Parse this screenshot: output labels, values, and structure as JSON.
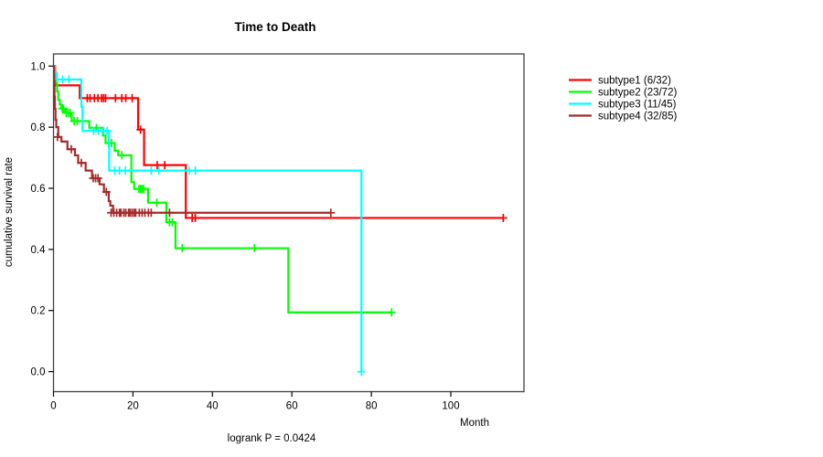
{
  "chart_data": {
    "type": "line",
    "subtype": "kaplan-meier-step",
    "title": "Time to Death",
    "footer": "logrank P = 0.0424",
    "x_axis": {
      "unit": "Month",
      "ticks": [
        0,
        20,
        40,
        60,
        80,
        100
      ],
      "range": [
        0,
        118.4
      ],
      "grid": false
    },
    "y_axis": {
      "label": "cumulative survival rate",
      "ticks": [
        "0.0",
        "0.2",
        "0.4",
        "0.6",
        "0.8",
        "1.0"
      ],
      "tick_values": [
        0.0,
        0.2,
        0.4,
        0.6,
        0.8,
        1.0
      ],
      "range": [
        0,
        1.0
      ],
      "grid": false
    },
    "legend_position": "right-outside",
    "series": [
      {
        "name": "subtype1 (6/32)",
        "color": "#FF0000",
        "steps": [
          [
            0,
            1.0
          ],
          [
            0.4,
            0.937
          ],
          [
            6.6,
            0.895
          ],
          [
            21.3,
            0.792
          ],
          [
            22.8,
            0.676
          ],
          [
            33.3,
            0.503
          ],
          [
            113.2,
            0.503
          ]
        ],
        "censors": [
          [
            8.5,
            0.895
          ],
          [
            9.2,
            0.895
          ],
          [
            10.3,
            0.895
          ],
          [
            11.2,
            0.895
          ],
          [
            12.1,
            0.895
          ],
          [
            12.6,
            0.895
          ],
          [
            13.1,
            0.895
          ],
          [
            15.6,
            0.895
          ],
          [
            17.2,
            0.895
          ],
          [
            18.2,
            0.895
          ],
          [
            19.8,
            0.895
          ],
          [
            21.9,
            0.792
          ],
          [
            26.1,
            0.676
          ],
          [
            28.0,
            0.676
          ],
          [
            34.9,
            0.503
          ],
          [
            35.7,
            0.503
          ],
          [
            113.2,
            0.503
          ]
        ]
      },
      {
        "name": "subtype2 (23/72)",
        "color": "#00FF00",
        "steps": [
          [
            0,
            1.0
          ],
          [
            0.3,
            0.972
          ],
          [
            0.6,
            0.944
          ],
          [
            0.9,
            0.917
          ],
          [
            1.2,
            0.889
          ],
          [
            1.6,
            0.875
          ],
          [
            2.0,
            0.861
          ],
          [
            2.8,
            0.847
          ],
          [
            4.6,
            0.82
          ],
          [
            9.0,
            0.798
          ],
          [
            12.4,
            0.773
          ],
          [
            13.1,
            0.748
          ],
          [
            15.4,
            0.723
          ],
          [
            16.3,
            0.708
          ],
          [
            19.6,
            0.62
          ],
          [
            20.3,
            0.598
          ],
          [
            23.8,
            0.553
          ],
          [
            28.4,
            0.489
          ],
          [
            30.7,
            0.404
          ],
          [
            59.1,
            0.194
          ],
          [
            85.1,
            0.194
          ]
        ],
        "censors": [
          [
            2.2,
            0.861
          ],
          [
            2.5,
            0.861
          ],
          [
            3.2,
            0.847
          ],
          [
            3.7,
            0.847
          ],
          [
            4.2,
            0.847
          ],
          [
            5.2,
            0.82
          ],
          [
            6.0,
            0.82
          ],
          [
            10.8,
            0.798
          ],
          [
            13.9,
            0.748
          ],
          [
            14.6,
            0.748
          ],
          [
            17.2,
            0.708
          ],
          [
            21.5,
            0.598
          ],
          [
            21.9,
            0.598
          ],
          [
            22.3,
            0.598
          ],
          [
            22.7,
            0.598
          ],
          [
            26.0,
            0.553
          ],
          [
            29.2,
            0.489
          ],
          [
            29.9,
            0.489
          ],
          [
            32.4,
            0.404
          ],
          [
            50.6,
            0.404
          ],
          [
            85.1,
            0.194
          ]
        ]
      },
      {
        "name": "subtype3 (11/45)",
        "color": "#00FFFF",
        "steps": [
          [
            0,
            1.0
          ],
          [
            0.3,
            0.978
          ],
          [
            0.8,
            0.956
          ],
          [
            7.0,
            0.867
          ],
          [
            7.3,
            0.788
          ],
          [
            14.0,
            0.658
          ],
          [
            77.5,
            0.658
          ],
          [
            77.5,
            0.0
          ]
        ],
        "censors": [
          [
            2.3,
            0.956
          ],
          [
            3.9,
            0.956
          ],
          [
            10.1,
            0.788
          ],
          [
            11.3,
            0.788
          ],
          [
            12.6,
            0.788
          ],
          [
            13.5,
            0.788
          ],
          [
            15.4,
            0.658
          ],
          [
            16.6,
            0.658
          ],
          [
            18.1,
            0.658
          ],
          [
            24.6,
            0.658
          ],
          [
            26.5,
            0.658
          ],
          [
            34.2,
            0.658
          ],
          [
            35.7,
            0.658
          ],
          [
            77.5,
            0.0
          ]
        ]
      },
      {
        "name": "subtype4 (32/85)",
        "color": "#A52A2A",
        "steps": [
          [
            0,
            1.0
          ],
          [
            0.15,
            0.95
          ],
          [
            0.25,
            0.9
          ],
          [
            0.35,
            0.86
          ],
          [
            0.5,
            0.824
          ],
          [
            0.7,
            0.8
          ],
          [
            1.2,
            0.768
          ],
          [
            2.0,
            0.753
          ],
          [
            3.5,
            0.728
          ],
          [
            5.4,
            0.708
          ],
          [
            6.2,
            0.683
          ],
          [
            8.1,
            0.658
          ],
          [
            9.7,
            0.633
          ],
          [
            11.6,
            0.613
          ],
          [
            12.7,
            0.588
          ],
          [
            13.9,
            0.558
          ],
          [
            14.3,
            0.543
          ],
          [
            15.0,
            0.52
          ],
          [
            69.8,
            0.52
          ]
        ],
        "censors": [
          [
            1.0,
            0.768
          ],
          [
            4.5,
            0.728
          ],
          [
            7.0,
            0.683
          ],
          [
            10.0,
            0.633
          ],
          [
            10.6,
            0.633
          ],
          [
            11.2,
            0.633
          ],
          [
            13.3,
            0.588
          ],
          [
            14.5,
            0.52
          ],
          [
            15.2,
            0.52
          ],
          [
            15.9,
            0.52
          ],
          [
            16.6,
            0.52
          ],
          [
            17.0,
            0.52
          ],
          [
            17.7,
            0.52
          ],
          [
            18.2,
            0.52
          ],
          [
            18.9,
            0.52
          ],
          [
            19.3,
            0.52
          ],
          [
            19.8,
            0.52
          ],
          [
            20.3,
            0.52
          ],
          [
            20.7,
            0.52
          ],
          [
            21.6,
            0.52
          ],
          [
            22.3,
            0.52
          ],
          [
            23.0,
            0.52
          ],
          [
            23.9,
            0.52
          ],
          [
            24.6,
            0.52
          ],
          [
            29.2,
            0.52
          ],
          [
            69.8,
            0.52
          ]
        ]
      }
    ],
    "frame_color": "#404040"
  }
}
